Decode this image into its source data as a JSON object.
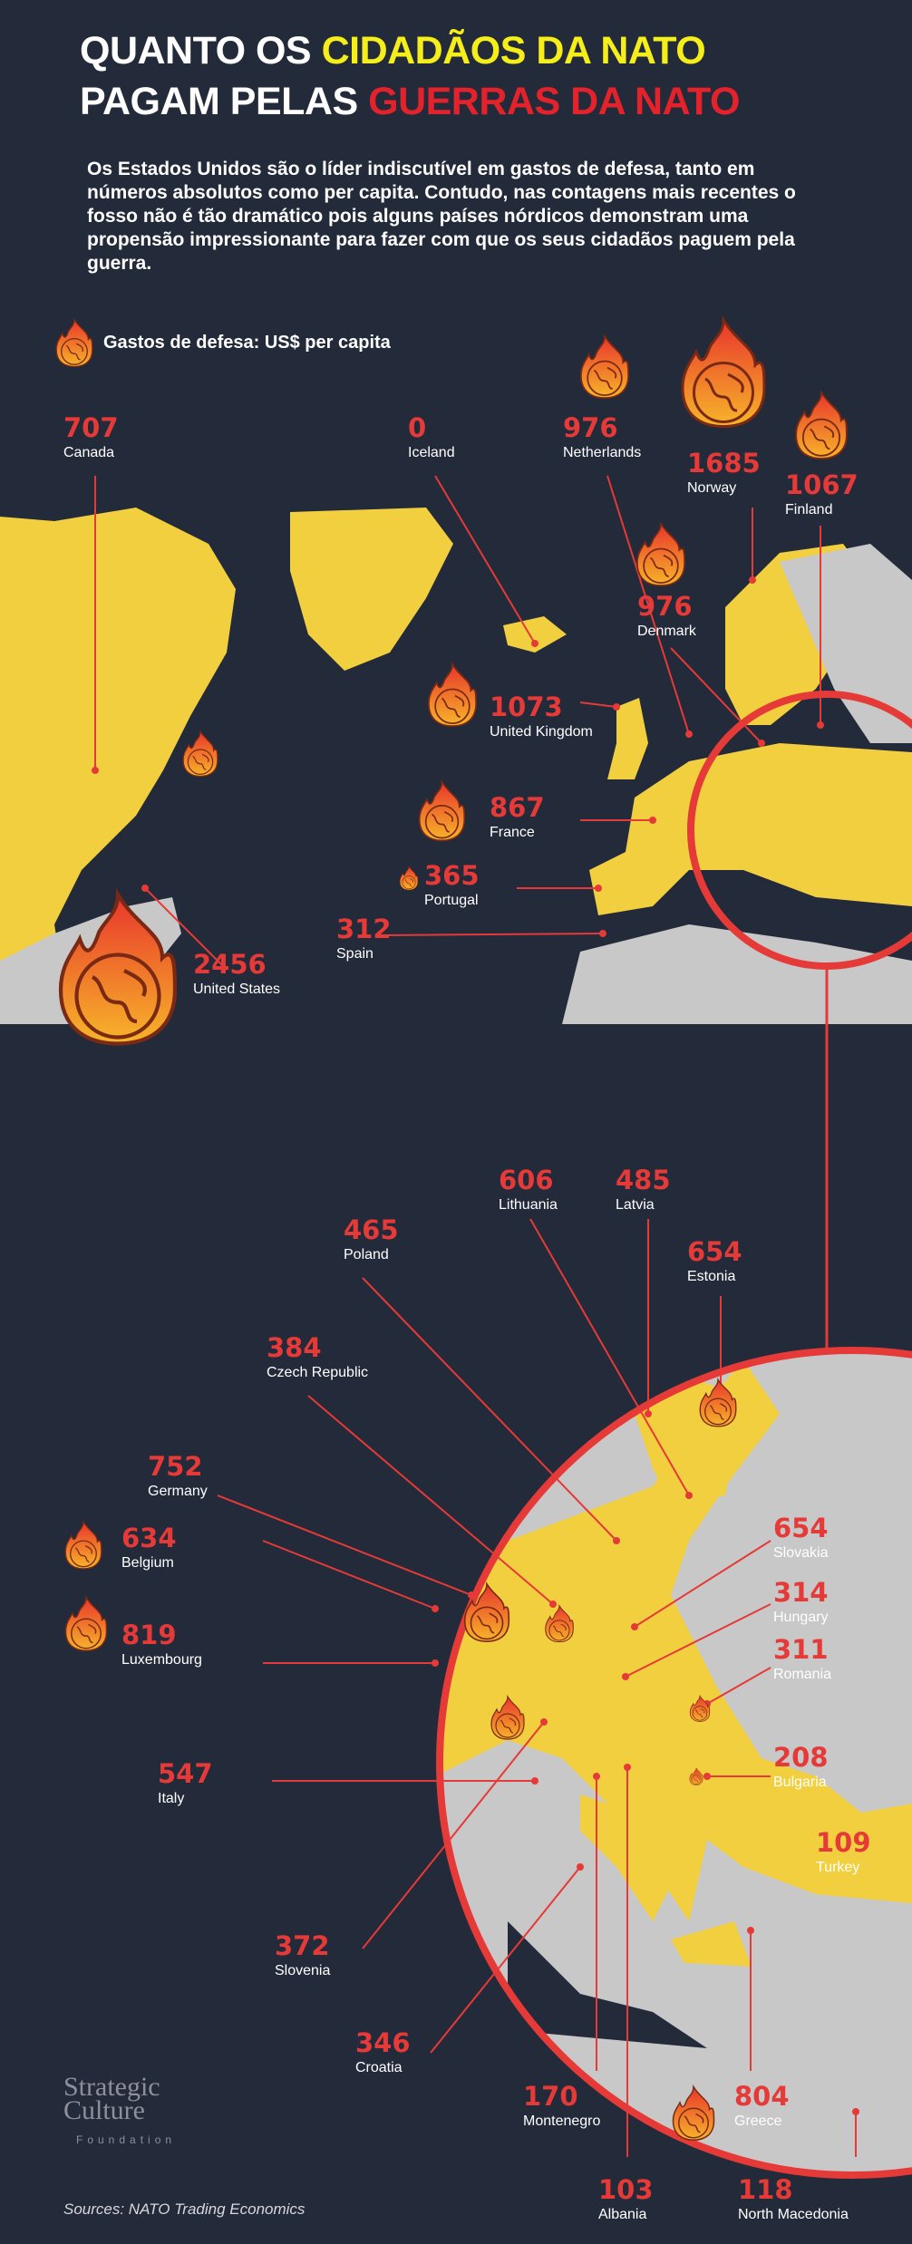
{
  "title": {
    "line1_white": "QUANTO OS ",
    "line1_yellow": "CIDADÃOS DA NATO",
    "line2_white": "PAGAM PELAS ",
    "line2_red": "GUERRAS DA NATO"
  },
  "intro": "Os Estados Unidos são o líder indiscutível em gastos de defesa, tanto em números absolutos como per capita. Contudo, nas contagens mais recentes o fosso não é tão dramático pois alguns países nórdicos demonstram uma propensão impressionante para fazer com que os seus cidadãos paguem pela guerra.",
  "legend": {
    "label": "Gastos de defesa: US$ per capita",
    "icon": "burning-globe-icon"
  },
  "colors": {
    "background": "#232a3a",
    "nato": "#f2cf3f",
    "non_nato": "#c8c8c8",
    "accent": "#e53a37"
  },
  "countries": [
    {
      "name": "Canada",
      "value": "707"
    },
    {
      "name": "Iceland",
      "value": "0"
    },
    {
      "name": "Netherlands",
      "value": "976"
    },
    {
      "name": "Norway",
      "value": "1685"
    },
    {
      "name": "Finland",
      "value": "1067"
    },
    {
      "name": "Denmark",
      "value": "976"
    },
    {
      "name": "United Kingdom",
      "value": "1073"
    },
    {
      "name": "France",
      "value": "867"
    },
    {
      "name": "Portugal",
      "value": "365"
    },
    {
      "name": "Spain",
      "value": "312"
    },
    {
      "name": "United States",
      "value": "2456"
    },
    {
      "name": "Lithuania",
      "value": "606"
    },
    {
      "name": "Latvia",
      "value": "485"
    },
    {
      "name": "Poland",
      "value": "465"
    },
    {
      "name": "Estonia",
      "value": "654"
    },
    {
      "name": "Czech Republic",
      "value": "384"
    },
    {
      "name": "Germany",
      "value": "752"
    },
    {
      "name": "Belgium",
      "value": "634"
    },
    {
      "name": "Slovakia",
      "value": "654"
    },
    {
      "name": "Hungary",
      "value": "314"
    },
    {
      "name": "Luxembourg",
      "value": "819"
    },
    {
      "name": "Romania",
      "value": "311"
    },
    {
      "name": "Bulgaria",
      "value": "208"
    },
    {
      "name": "Italy",
      "value": "547"
    },
    {
      "name": "Turkey",
      "value": "109"
    },
    {
      "name": "Slovenia",
      "value": "372"
    },
    {
      "name": "Croatia",
      "value": "346"
    },
    {
      "name": "Montenegro",
      "value": "170"
    },
    {
      "name": "Greece",
      "value": "804"
    },
    {
      "name": "Albania",
      "value": "103"
    },
    {
      "name": "North Macedonia",
      "value": "118"
    }
  ],
  "logo": {
    "line1": "Strategic",
    "line2": "Culture",
    "line3": "Foundation"
  },
  "sources": "Sources: NATO Trading Economics"
}
